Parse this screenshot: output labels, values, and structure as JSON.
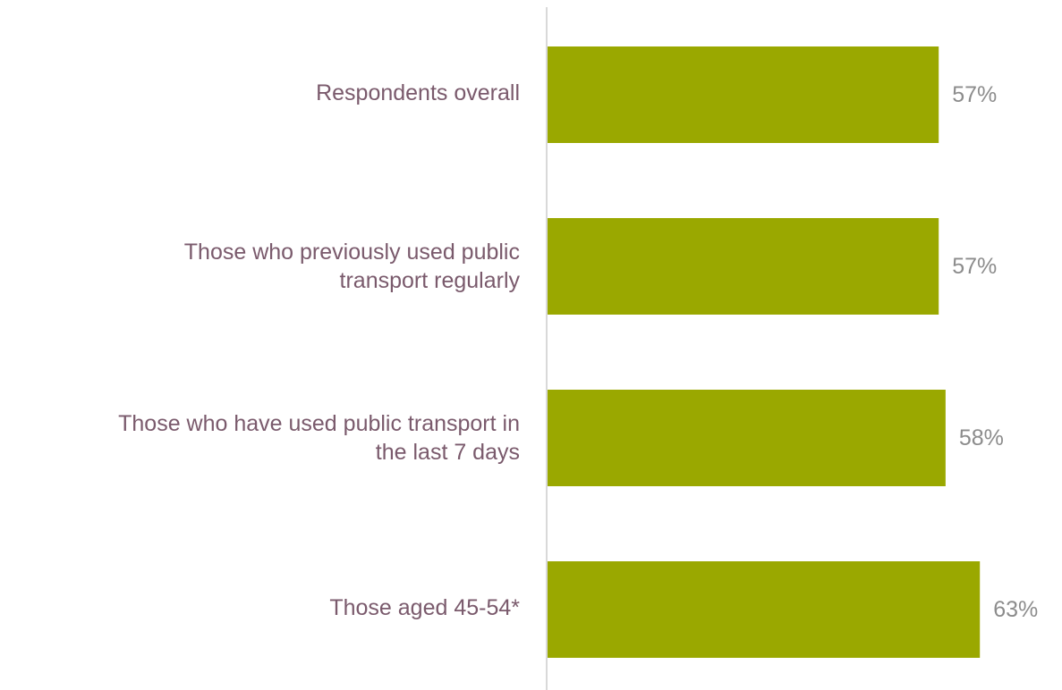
{
  "colors": {
    "bar": "#9aa800",
    "axis": "#d9d9d9",
    "category_text": "#7a5a6c",
    "value_text": "#8c8c8c"
  },
  "chart_data": {
    "type": "bar",
    "orientation": "horizontal",
    "title": "",
    "categories": [
      "Respondents overall",
      "Those who previously used public transport regularly",
      "Those who have used public transport in the last 7 days",
      "Those aged 45-54*"
    ],
    "category_lines": [
      [
        "Respondents overall"
      ],
      [
        "Those who previously used public",
        "transport regularly"
      ],
      [
        "Those who have used public transport in",
        "the last 7 days"
      ],
      [
        "Those aged 45-54*"
      ]
    ],
    "values": [
      57,
      57,
      58,
      63
    ],
    "data_labels": [
      "57%",
      "57%",
      "58%",
      "63%"
    ],
    "xlim": [
      0,
      76
    ],
    "grid": false,
    "legend": "none"
  }
}
